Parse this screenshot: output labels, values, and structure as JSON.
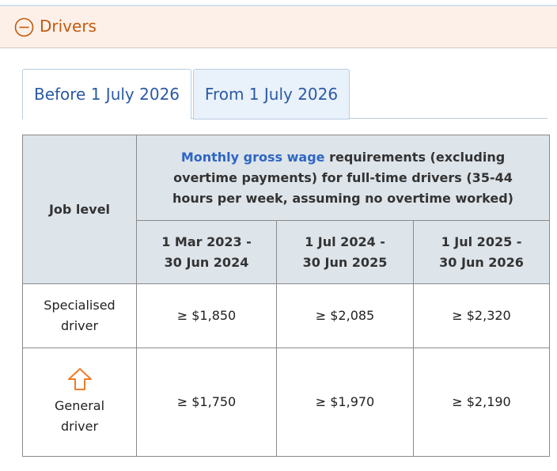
{
  "accordion": {
    "title": "Drivers",
    "icon": "collapse-circle-minus-icon"
  },
  "tabs": [
    {
      "label": "Before 1 July 2026",
      "active": true
    },
    {
      "label": "From 1 July 2026",
      "active": false
    }
  ],
  "table": {
    "job_level_header": "Job level",
    "main_header_link": "Monthly gross wage",
    "main_header_rest": " requirements (excluding overtime payments) for full-time drivers (35-44 hours per week, assuming no overtime worked)",
    "periods": [
      {
        "line1": "1 Mar 2023 -",
        "line2": "30 Jun 2024"
      },
      {
        "line1": "1 Jul 2024 -",
        "line2": "30 Jun 2025"
      },
      {
        "line1": "1 Jul 2025 -",
        "line2": "30 Jun 2026"
      }
    ],
    "rows": [
      {
        "level_line1": "Specialised",
        "level_line2": "driver",
        "values": [
          "≥ $1,850",
          "≥ $2,085",
          "≥ $2,320"
        ]
      },
      {
        "level_line1": "General",
        "level_line2": "driver",
        "icon": "up-arrow-icon",
        "values": [
          "≥ $1,750",
          "≥ $1,970",
          "≥ $2,190"
        ]
      }
    ]
  },
  "colors": {
    "accent_orange": "#c25a0e",
    "arrow_orange": "#f07c2a",
    "link_blue": "#2e66c4",
    "header_bg": "#dde4ea"
  }
}
